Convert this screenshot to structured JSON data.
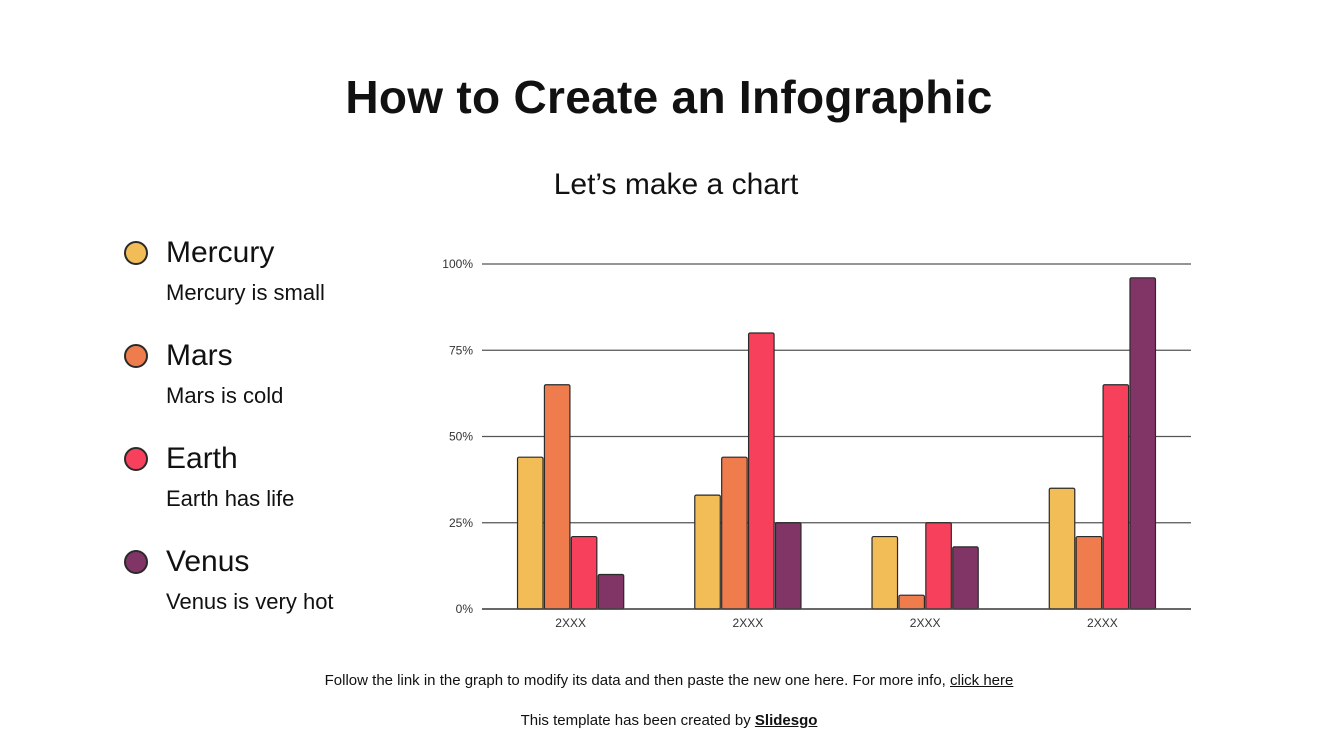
{
  "title": "How to Create an Infographic",
  "subtitle": "Let’s make a chart",
  "legend": [
    {
      "name": "Mercury",
      "desc": "Mercury is small",
      "color": "#F2BC57"
    },
    {
      "name": "Mars",
      "desc": "Mars is cold",
      "color": "#EE7C4C"
    },
    {
      "name": "Earth",
      "desc": "Earth has life",
      "color": "#F7415C"
    },
    {
      "name": "Venus",
      "desc": "Venus is very hot",
      "color": "#813466"
    }
  ],
  "chart_data": {
    "type": "bar",
    "categories": [
      "2XXX",
      "2XXX",
      "2XXX",
      "2XXX"
    ],
    "series": [
      {
        "name": "Mercury",
        "color": "#F2BC57",
        "values": [
          44,
          33,
          21,
          35
        ]
      },
      {
        "name": "Mars",
        "color": "#EE7C4C",
        "values": [
          65,
          44,
          4,
          21
        ]
      },
      {
        "name": "Earth",
        "color": "#F7415C",
        "values": [
          21,
          80,
          25,
          65
        ]
      },
      {
        "name": "Venus",
        "color": "#813466",
        "values": [
          10,
          25,
          18,
          96
        ]
      }
    ],
    "ylim": [
      0,
      100
    ],
    "yticks": [
      "0%",
      "25%",
      "50%",
      "75%",
      "100%"
    ],
    "grid": true,
    "xlabel": "",
    "ylabel": ""
  },
  "footer": {
    "text": "Follow the link in the graph to modify its data and then paste the new one here. For more info, ",
    "link": "click here"
  },
  "credit": {
    "text": "This template has been created by ",
    "link": "Slidesgo"
  }
}
